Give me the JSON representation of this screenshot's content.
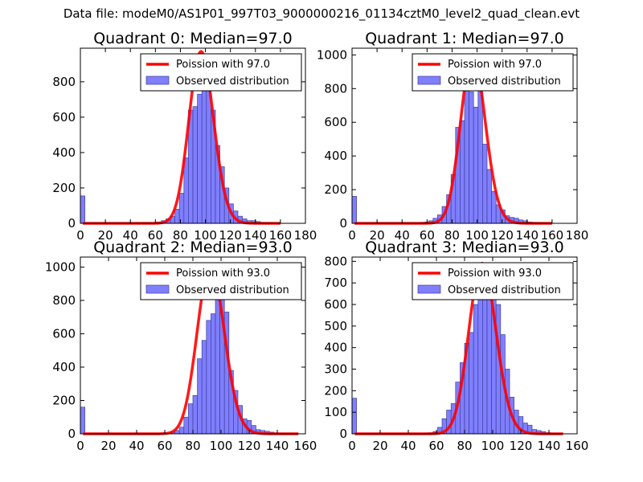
{
  "suptitle": "Data file: modeM0/AS1P01_997T03_9000000216_01134cztM0_level2_quad_clean.evt",
  "chart_data": [
    {
      "type": "bar",
      "title": "Quadrant 0: Median=97.0",
      "legend": [
        "Poission with 97.0",
        "Observed distribution"
      ],
      "legend_loc": "top-right",
      "xlim": [
        0,
        180
      ],
      "ylim": [
        0,
        990
      ],
      "xticks": [
        0,
        20,
        40,
        60,
        80,
        100,
        120,
        140,
        160,
        180
      ],
      "xtick_labels": [
        "0",
        "20",
        "40",
        "60",
        "80",
        "100",
        "120",
        "140",
        "160",
        "180"
      ],
      "yticks": [
        0,
        200,
        400,
        600,
        800
      ],
      "ytick_labels": [
        "0",
        "200",
        "400",
        "600",
        "800"
      ],
      "bin_width": 3.6,
      "mean": 97.0,
      "fit_amplitude": 970,
      "fit_x_range": [
        2,
        160
      ],
      "bars_x": [
        0,
        50.4,
        54,
        57.6,
        61.2,
        64.8,
        68.4,
        72,
        75.6,
        79.2,
        82.8,
        86.4,
        90,
        93.6,
        97.2,
        100.8,
        104.4,
        108,
        111.6,
        115.2,
        118.8,
        122.4,
        126,
        129.6,
        133.2,
        136.8,
        140.4,
        144,
        147.6,
        151.2
      ],
      "bars_y": [
        155,
        5,
        3,
        3,
        8,
        15,
        25,
        40,
        80,
        170,
        370,
        640,
        660,
        730,
        830,
        760,
        640,
        440,
        320,
        200,
        110,
        70,
        40,
        25,
        15,
        15,
        10,
        5,
        3,
        2
      ]
    },
    {
      "type": "bar",
      "title": "Quadrant 1: Median=97.0",
      "legend": [
        "Poission with 97.0",
        "Observed distribution"
      ],
      "legend_loc": "top-right",
      "xlim": [
        0,
        180
      ],
      "ylim": [
        0,
        1040
      ],
      "xticks": [
        0,
        20,
        40,
        60,
        80,
        100,
        120,
        140,
        160,
        180
      ],
      "xtick_labels": [
        "0",
        "20",
        "40",
        "60",
        "80",
        "100",
        "120",
        "140",
        "160",
        "180"
      ],
      "yticks": [
        0,
        200,
        400,
        600,
        800,
        1000
      ],
      "ytick_labels": [
        "0",
        "200",
        "400",
        "600",
        "800",
        "1000"
      ],
      "bin_width": 3.6,
      "mean": 97.0,
      "fit_amplitude": 1000,
      "fit_x_range": [
        2,
        160
      ],
      "bars_x": [
        0,
        54,
        57.6,
        61.2,
        64.8,
        68.4,
        72,
        75.6,
        79.2,
        82.8,
        86.4,
        90,
        93.6,
        97.2,
        100.8,
        104.4,
        108,
        111.6,
        115.2,
        118.8,
        122.4,
        126,
        129.6,
        133.2,
        136.8,
        140.4,
        144,
        147.6
      ],
      "bars_y": [
        160,
        5,
        8,
        15,
        30,
        50,
        100,
        170,
        290,
        570,
        610,
        870,
        780,
        690,
        860,
        470,
        320,
        190,
        110,
        80,
        45,
        35,
        30,
        20,
        15,
        8,
        5,
        3
      ]
    },
    {
      "type": "bar",
      "title": "Quadrant 2: Median=93.0",
      "legend": [
        "Poission with 93.0",
        "Observed distribution"
      ],
      "legend_loc": "top-right",
      "xlim": [
        0,
        160
      ],
      "ylim": [
        0,
        1060
      ],
      "xticks": [
        0,
        20,
        40,
        60,
        80,
        100,
        120,
        140,
        160
      ],
      "xtick_labels": [
        "0",
        "20",
        "40",
        "60",
        "80",
        "100",
        "120",
        "140",
        "160"
      ],
      "yticks": [
        0,
        200,
        400,
        600,
        800,
        1000
      ],
      "ytick_labels": [
        "0",
        "200",
        "400",
        "600",
        "800",
        "1000"
      ],
      "bin_width": 3.2,
      "mean": 93.0,
      "fit_amplitude": 1010,
      "fit_x_range": [
        2,
        155
      ],
      "bars_x": [
        0,
        60.8,
        64,
        67.2,
        70.4,
        73.6,
        76.8,
        80,
        83.2,
        86.4,
        89.6,
        92.8,
        96,
        99.2,
        102.4,
        105.6,
        108.8,
        112,
        115.2,
        118.4,
        121.6,
        124.8,
        128,
        131.2,
        134.4,
        137.6,
        140.8
      ],
      "bars_y": [
        160,
        5,
        10,
        20,
        40,
        100,
        180,
        230,
        450,
        560,
        680,
        720,
        1000,
        950,
        730,
        380,
        260,
        170,
        90,
        80,
        50,
        25,
        20,
        15,
        10,
        5,
        3
      ]
    },
    {
      "type": "bar",
      "title": "Quadrant 3: Median=93.0",
      "legend": [
        "Poission with 93.0",
        "Observed distribution"
      ],
      "legend_loc": "top-right",
      "xlim": [
        0,
        160
      ],
      "ylim": [
        0,
        820
      ],
      "xticks": [
        0,
        20,
        40,
        60,
        80,
        100,
        120,
        140,
        160
      ],
      "xtick_labels": [
        "0",
        "20",
        "40",
        "60",
        "80",
        "100",
        "120",
        "140",
        "160"
      ],
      "yticks": [
        0,
        100,
        200,
        300,
        400,
        500,
        600,
        700,
        800
      ],
      "ytick_labels": [
        "0",
        "100",
        "200",
        "300",
        "400",
        "500",
        "600",
        "700",
        "800"
      ],
      "bin_width": 3.2,
      "mean": 93.0,
      "fit_amplitude": 790,
      "fit_x_range": [
        2,
        150
      ],
      "bars_x": [
        0,
        51.2,
        54.4,
        57.6,
        60.8,
        64,
        67.2,
        70.4,
        73.6,
        76.8,
        80,
        83.2,
        86.4,
        89.6,
        92.8,
        96,
        99.2,
        102.4,
        105.6,
        108.8,
        112,
        115.2,
        118.4,
        121.6,
        124.8,
        128,
        131.2,
        134.4,
        137.6
      ],
      "bars_y": [
        165,
        3,
        5,
        10,
        30,
        70,
        110,
        140,
        240,
        330,
        420,
        470,
        600,
        650,
        700,
        720,
        660,
        600,
        460,
        300,
        170,
        110,
        80,
        50,
        40,
        20,
        15,
        10,
        5
      ]
    }
  ]
}
